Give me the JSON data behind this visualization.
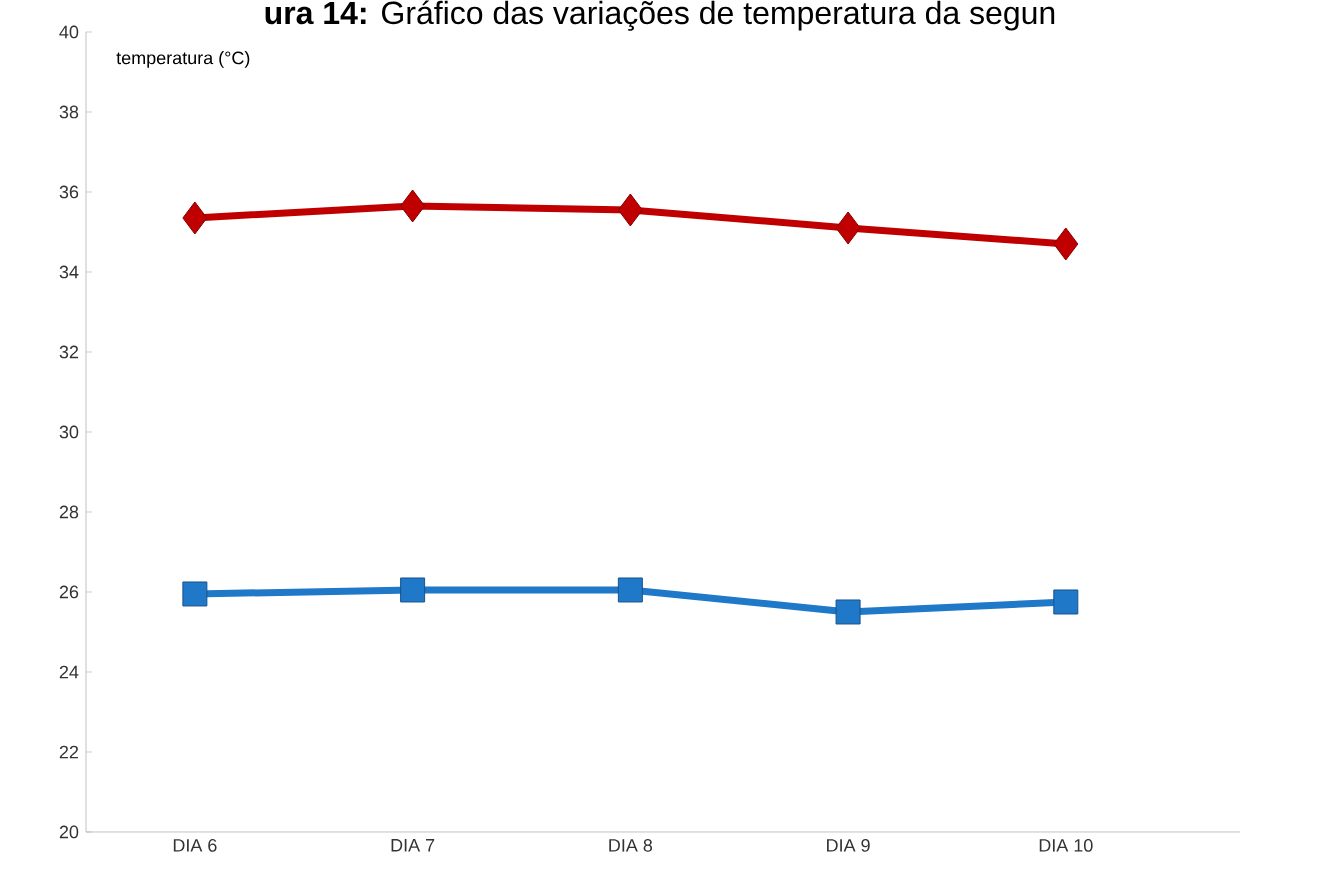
{
  "chart_data": {
    "type": "line",
    "title": "**ura 14:** Gráfico das variações de temperatura da segun",
    "ylabel": "temperatura (°C)",
    "categories": [
      "DIA 6",
      "DIA 7",
      "DIA 8",
      "DIA 9",
      "DIA 10"
    ],
    "series": [
      {
        "color": "#c00000",
        "marker": "diamond",
        "values": [
          35.35,
          35.65,
          35.55,
          35.1,
          34.7
        ]
      },
      {
        "color": "#1f78c8",
        "marker": "square",
        "values": [
          25.95,
          26.05,
          26.05,
          25.5,
          25.75
        ]
      }
    ],
    "ylim": [
      20,
      40
    ],
    "yticks": [
      20,
      22,
      24,
      26,
      28,
      30,
      32,
      34,
      36,
      38,
      40
    ],
    "grid": false
  }
}
